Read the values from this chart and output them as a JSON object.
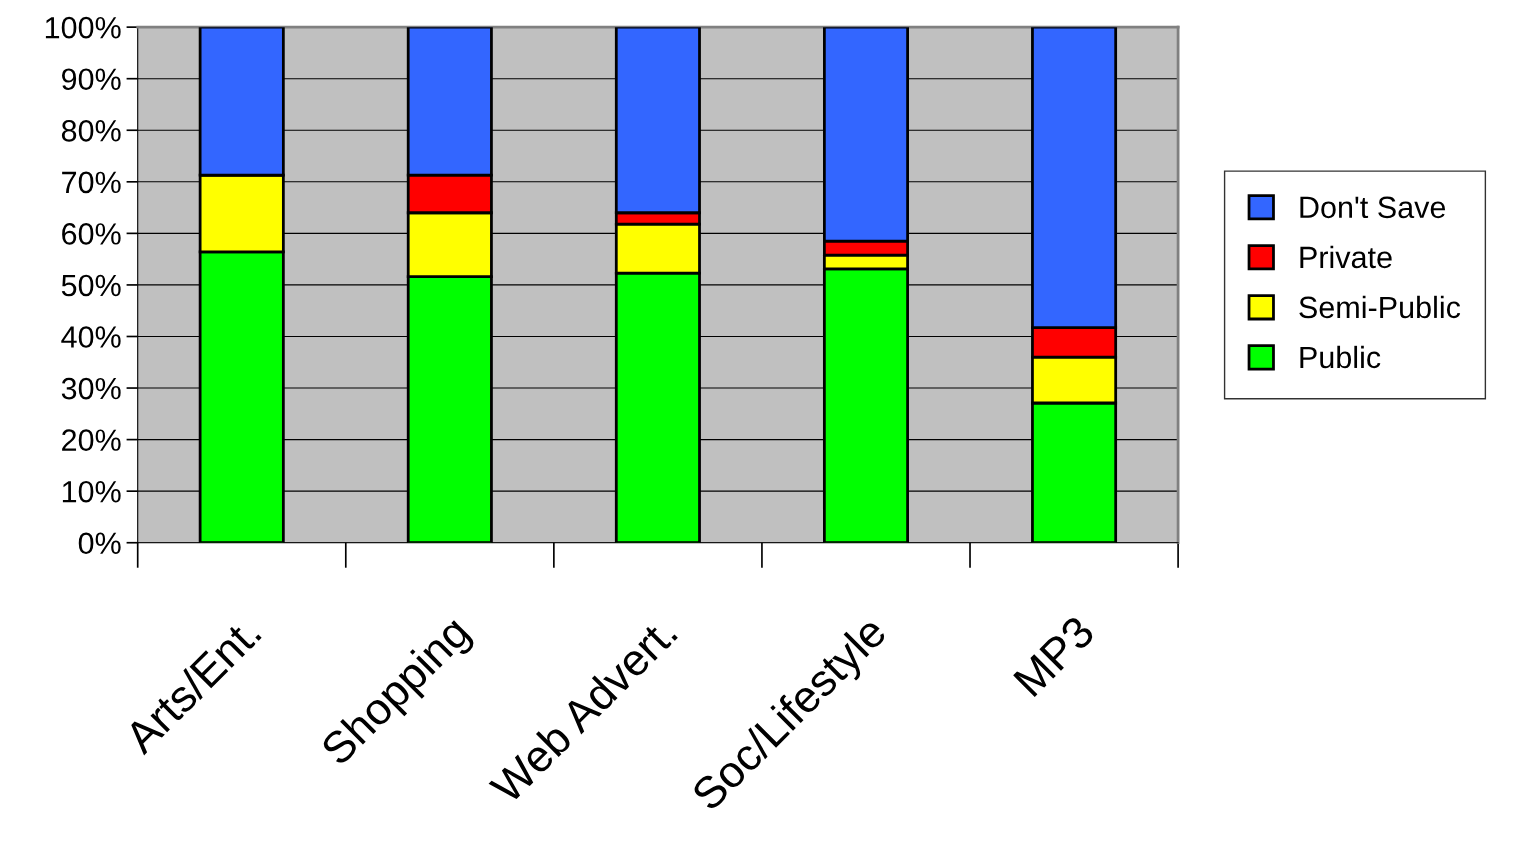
{
  "chart_data": {
    "type": "bar",
    "stacked": true,
    "categories": [
      "Arts/Ent.",
      "Shopping",
      "Web Advert.",
      "Soc/Lifestyle",
      "MP3"
    ],
    "series": [
      {
        "name": "Public",
        "color": "#00ff00",
        "values": [
          56.4,
          51.6,
          52.3,
          53.1,
          27.1
        ]
      },
      {
        "name": "Semi-Public",
        "color": "#ffff00",
        "values": [
          14.9,
          12.4,
          9.5,
          2.7,
          8.9
        ]
      },
      {
        "name": "Private",
        "color": "#ff0000",
        "values": [
          0,
          7.3,
          2.2,
          2.7,
          5.7
        ]
      },
      {
        "name": "Don't Save",
        "color": "#3366ff",
        "values": [
          28.7,
          28.7,
          36.0,
          41.5,
          58.3
        ]
      }
    ],
    "ylim": [
      0,
      100
    ],
    "yticks": [
      {
        "value": 0,
        "label": "0%"
      },
      {
        "value": 10,
        "label": "10%"
      },
      {
        "value": 20,
        "label": "20%"
      },
      {
        "value": 30,
        "label": "30%"
      },
      {
        "value": 40,
        "label": "40%"
      },
      {
        "value": 50,
        "label": "50%"
      },
      {
        "value": 60,
        "label": "60%"
      },
      {
        "value": 70,
        "label": "70%"
      },
      {
        "value": 80,
        "label": "80%"
      },
      {
        "value": 90,
        "label": "90%"
      },
      {
        "value": 100,
        "label": "100%"
      }
    ],
    "grid": "y",
    "legend": "right"
  }
}
